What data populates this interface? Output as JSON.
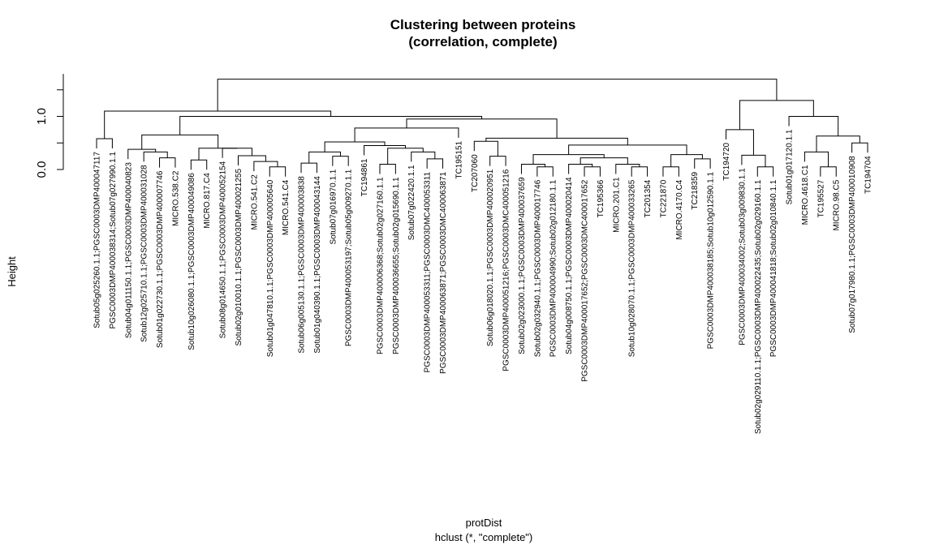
{
  "chart_data": {
    "type": "dendrogram",
    "title_line1": "Clustering between proteins",
    "title_line2": "(correlation, complete)",
    "ylabel": "Height",
    "xlabel": "protDist",
    "sub": "hclust (*, \"complete\")",
    "ylim": [
      0,
      1.8
    ],
    "yticks": [
      0.0,
      1.0
    ],
    "ytick_labels": [
      "0.0",
      "1.0"
    ],
    "leaves": [
      "Sotub05g025260.1.1;PGSC0003DMP400047117",
      "PGSC0003DMP400038314;Sotub07g027990.1.1",
      "Sotub04g011150.1.1;PGSC0003DMP400040823",
      "Sotub12g025710.1.1;PGSC0003DMP400031028",
      "Sotub01g022730.1.1;PGSC0003DMP400007746",
      "MICRO.538.C2",
      "Sotub10g026080.1.1;PGSC0003DMP400049086",
      "MICRO.817.C4",
      "Sotub08g014650.1.1;PGSC0003DMP400052154",
      "Sotub02g010010.1.1;PGSC0003DMP400021255",
      "MICRO.541.C2",
      "Sotub01g047810.1.1;PGSC0003DMP400005640",
      "MICRO.541.C4",
      "Sotub06g005130.1.1;PGSC0003DMP400003838",
      "Sotub01g040390.1.1;PGSC0003DMP400043144",
      "Sotub07g016970.1.1",
      "PGSC0003DMP400053197;Sotub05g009270.1.1",
      "TC194861",
      "PGSC0003DMP400006368;Sotub02g027160.1.1",
      "PGSC0003DMP400036655;Sotub02g015690.1.1",
      "Sotub07g022420.1.1",
      "PGSC0003DMP400053311;PGSC0003DMC400053311",
      "PGSC0003DMP400063871;PGSC0003DMC400063871",
      "TC195151",
      "TC207060",
      "Sotub06g018020.1.1;PGSC0003DMP400020951",
      "PGSC0003DMP400051216;PGSC0003DMC400051216",
      "Sotub02g023000.1.1;PGSC0003DMP400037659",
      "Sotub02g032940.1.1;PGSC0003DMP400017746",
      "PGSC0003DMP400004990;Sotub02g012180.1.1",
      "Sotub04g008750.1.1;PGSC0003DMP400020414",
      "PGSC0003DMP400017652;PGSC0003DMC400017652",
      "TC195366",
      "MICRO.201.C1",
      "Sotub10g028070.1.1;PGSC0003DMP400033265",
      "TC201354",
      "TC221870",
      "MICRO.4170.C4",
      "TC218359",
      "PGSC0003DMP400038185;Sotub10g012590.1.1",
      "TC194720",
      "PGSC0003DMP400034002;Sotub03g009830.1.1",
      "Sotub02g029110.1.1;PGSC0003DMP400022435;Sotub02g029160.1.1",
      "PGSC0003DMP400041818;Sotub02g010840.1.1",
      "Sotub01g017120.1.1",
      "MICRO.4618.C1",
      "TC195527",
      "MICRO.98.C5",
      "Sotub07g017980.1.1;PGSC0003DMP400010908",
      "TC194704"
    ],
    "merges": [
      [
        -1,
        -2,
        0.58
      ],
      [
        -5,
        -6,
        0.22
      ],
      [
        -4,
        2,
        0.33
      ],
      [
        -3,
        3,
        0.38
      ],
      [
        -7,
        -8,
        0.18
      ],
      [
        -12,
        -13,
        0.05
      ],
      [
        -11,
        6,
        0.15
      ],
      [
        -10,
        7,
        0.26
      ],
      [
        -9,
        8,
        0.4
      ],
      [
        5,
        9,
        0.4
      ],
      [
        4,
        10,
        0.65
      ],
      [
        -14,
        -15,
        0.12
      ],
      [
        -16,
        -17,
        0.25
      ],
      [
        12,
        13,
        0.33
      ],
      [
        -19,
        -20,
        0.1
      ],
      [
        -22,
        -23,
        0.2
      ],
      [
        -21,
        16,
        0.33
      ],
      [
        15,
        17,
        0.4
      ],
      [
        -18,
        18,
        0.45
      ],
      [
        14,
        19,
        0.52
      ],
      [
        -24,
        20,
        0.78
      ],
      [
        -26,
        -27,
        0.25
      ],
      [
        -25,
        22,
        0.53
      ],
      [
        -29,
        -30,
        0.05
      ],
      [
        -28,
        24,
        0.1
      ],
      [
        -32,
        -33,
        0.05
      ],
      [
        -31,
        26,
        0.1
      ],
      [
        -35,
        -36,
        0.05
      ],
      [
        -34,
        28,
        0.1
      ],
      [
        27,
        29,
        0.22
      ],
      [
        25,
        30,
        0.28
      ],
      [
        -37,
        -38,
        0.05
      ],
      [
        -39,
        -40,
        0.2
      ],
      [
        32,
        33,
        0.28
      ],
      [
        31,
        34,
        0.46
      ],
      [
        23,
        35,
        0.59
      ],
      [
        21,
        36,
        0.95
      ],
      [
        11,
        37,
        1.0
      ],
      [
        1,
        38,
        1.1
      ],
      [
        -43,
        -44,
        0.05
      ],
      [
        -42,
        40,
        0.27
      ],
      [
        -41,
        41,
        0.75
      ],
      [
        -47,
        -48,
        0.05
      ],
      [
        -46,
        43,
        0.33
      ],
      [
        -49,
        -50,
        0.5
      ],
      [
        44,
        45,
        0.63
      ],
      [
        -45,
        46,
        1.0
      ],
      [
        42,
        47,
        1.3
      ],
      [
        39,
        48,
        1.7
      ]
    ]
  }
}
